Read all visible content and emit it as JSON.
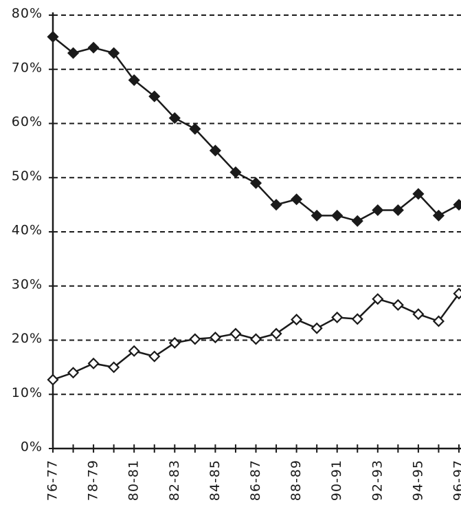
{
  "chart_data": {
    "type": "line",
    "categories": [
      "76-77",
      null,
      "78-79",
      null,
      "80-81",
      null,
      "82-83",
      null,
      "84-85",
      null,
      "86-87",
      null,
      "88-89",
      null,
      "90-91",
      null,
      "92-93",
      null,
      "94-95",
      null,
      "96-97"
    ],
    "series": [
      {
        "color": "#1a1a1a",
        "marker": "filled",
        "values": [
          76,
          73,
          74,
          73,
          68,
          65,
          61,
          59,
          55,
          51,
          49,
          45,
          46,
          43,
          43,
          42,
          44,
          44,
          47,
          43,
          45
        ]
      },
      {
        "color": "#1a1a1a",
        "marker": "open",
        "values": [
          12.7,
          14,
          15.7,
          15,
          18,
          17,
          19.5,
          20.2,
          20.5,
          21.2,
          20.2,
          21.2,
          23.8,
          22.2,
          24.2,
          23.9,
          27.6,
          26.5,
          24.8,
          23.5,
          28.6
        ]
      }
    ],
    "ylim": [
      0,
      80
    ],
    "yticks": [
      {
        "value": 0,
        "label": "0%"
      },
      {
        "value": 10,
        "label": "10%"
      },
      {
        "value": 20,
        "label": "20%"
      },
      {
        "value": 30,
        "label": "30%"
      },
      {
        "value": 40,
        "label": "40%"
      },
      {
        "value": 50,
        "label": "50%"
      },
      {
        "value": 60,
        "label": "60%"
      },
      {
        "value": 70,
        "label": "70%"
      },
      {
        "value": 80,
        "label": "80%"
      }
    ],
    "grid": true
  }
}
